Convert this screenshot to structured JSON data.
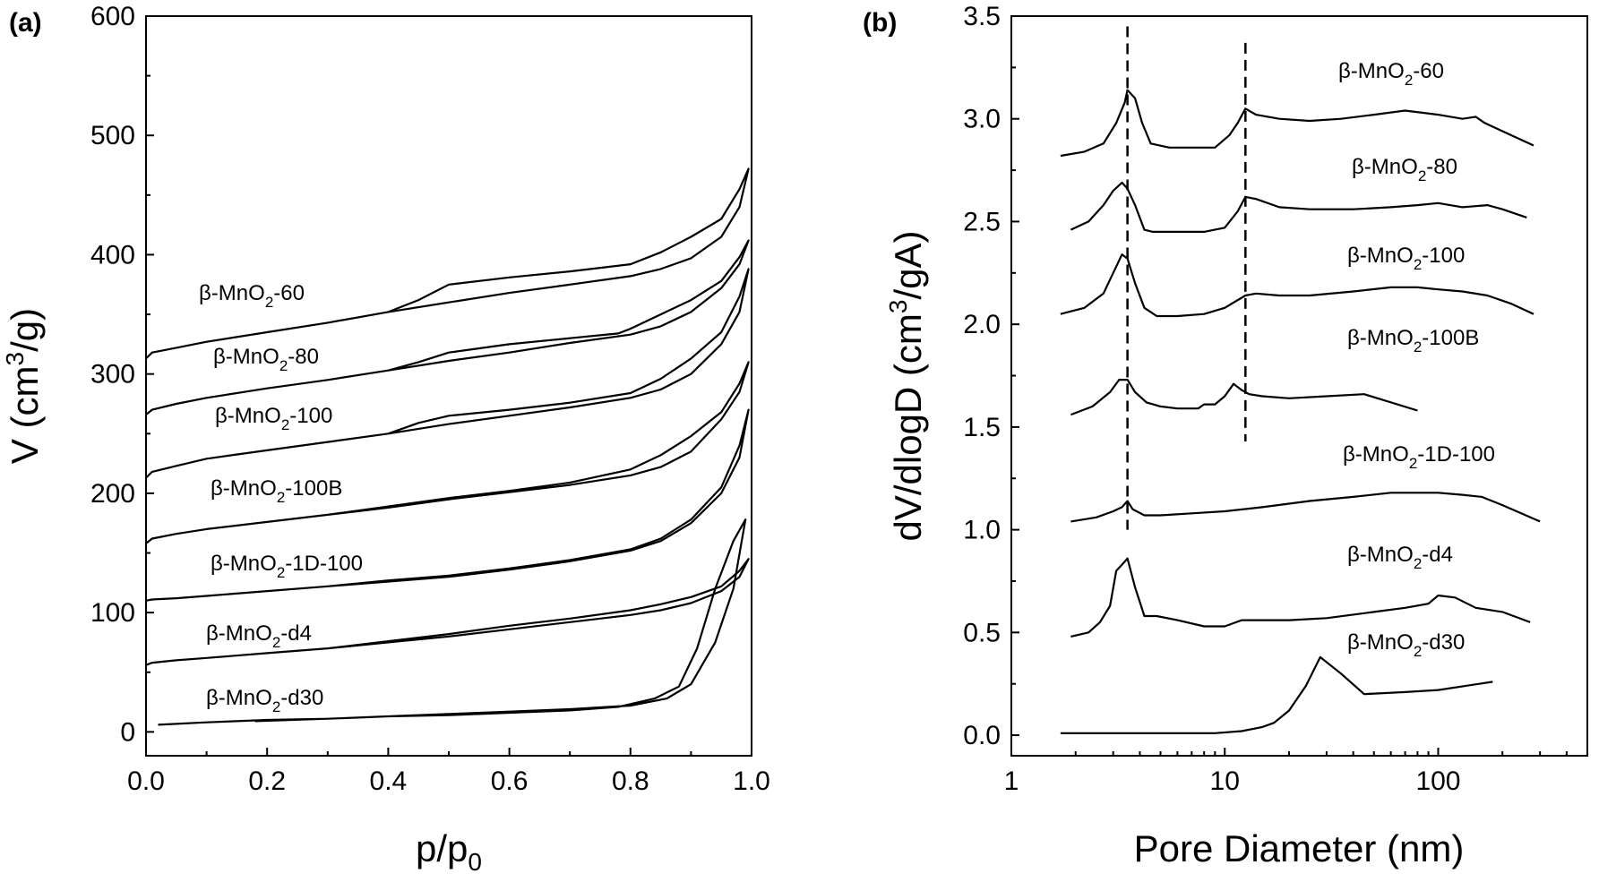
{
  "chart_data": [
    {
      "type": "line",
      "panel_label": "(a)",
      "xlabel_main": "p/p",
      "xlabel_sub": "0",
      "ylabel_pre": "V (cm",
      "ylabel_sup": "3",
      "ylabel_post": "/g)",
      "xlim": [
        0.0,
        1.0
      ],
      "ylim": [
        -20,
        600
      ],
      "xticks": [
        "0.0",
        "0.2",
        "0.4",
        "0.6",
        "0.8",
        "1.0"
      ],
      "yticks": [
        "0",
        "100",
        "200",
        "300",
        "400",
        "500",
        "600"
      ],
      "grid": false,
      "series": [
        {
          "name": "β-MnO₂-60",
          "label": {
            "pre": "β-MnO",
            "sub": "2",
            "post": "-60"
          },
          "x": [
            0.0,
            0.01,
            0.05,
            0.1,
            0.2,
            0.3,
            0.4,
            0.5,
            0.6,
            0.7,
            0.8,
            0.85,
            0.9,
            0.95,
            0.98,
            0.995,
            0.98,
            0.95,
            0.9,
            0.85,
            0.8,
            0.7,
            0.6,
            0.5,
            0.45,
            0.4,
            0.3,
            0.2,
            0.1,
            0.05,
            0.01
          ],
          "y": [
            313,
            318,
            322,
            327,
            335,
            343,
            352,
            360,
            368,
            375,
            382,
            388,
            397,
            415,
            440,
            472,
            455,
            430,
            415,
            402,
            392,
            386,
            381,
            375,
            362,
            352,
            343,
            335,
            327,
            322,
            318
          ]
        },
        {
          "name": "β-MnO₂-80",
          "label": {
            "pre": "β-MnO",
            "sub": "2",
            "post": "-80"
          },
          "x": [
            0.0,
            0.01,
            0.05,
            0.1,
            0.2,
            0.3,
            0.4,
            0.5,
            0.6,
            0.7,
            0.8,
            0.85,
            0.9,
            0.95,
            0.98,
            0.995,
            0.98,
            0.95,
            0.9,
            0.85,
            0.8,
            0.78,
            0.7,
            0.6,
            0.5,
            0.45,
            0.4,
            0.3,
            0.2,
            0.1,
            0.05,
            0.01
          ],
          "y": [
            266,
            270,
            275,
            280,
            288,
            295,
            303,
            311,
            318,
            326,
            333,
            340,
            352,
            372,
            392,
            412,
            398,
            378,
            362,
            350,
            338,
            334,
            330,
            325,
            318,
            310,
            303,
            295,
            288,
            280,
            275,
            270
          ]
        },
        {
          "name": "β-MnO₂-100",
          "label": {
            "pre": "β-MnO",
            "sub": "2",
            "post": "-100"
          },
          "x": [
            0.0,
            0.01,
            0.05,
            0.1,
            0.2,
            0.3,
            0.4,
            0.5,
            0.6,
            0.7,
            0.8,
            0.85,
            0.9,
            0.95,
            0.98,
            0.995,
            0.98,
            0.95,
            0.9,
            0.85,
            0.8,
            0.7,
            0.6,
            0.5,
            0.45,
            0.4,
            0.3,
            0.2,
            0.1,
            0.05,
            0.01
          ],
          "y": [
            213,
            218,
            223,
            229,
            236,
            243,
            250,
            258,
            265,
            272,
            280,
            287,
            300,
            325,
            352,
            388,
            365,
            335,
            313,
            296,
            284,
            276,
            270,
            265,
            259,
            250,
            243,
            236,
            229,
            223,
            218
          ]
        },
        {
          "name": "β-MnO₂-100B",
          "label": {
            "pre": "β-MnO",
            "sub": "2",
            "post": "-100B"
          },
          "x": [
            0.0,
            0.01,
            0.05,
            0.1,
            0.2,
            0.3,
            0.4,
            0.5,
            0.6,
            0.7,
            0.8,
            0.85,
            0.9,
            0.95,
            0.98,
            0.995,
            0.98,
            0.95,
            0.9,
            0.85,
            0.8,
            0.7,
            0.6,
            0.5,
            0.4,
            0.3,
            0.2,
            0.1,
            0.05,
            0.01
          ],
          "y": [
            158,
            162,
            166,
            170,
            176,
            182,
            188,
            195,
            201,
            207,
            215,
            222,
            235,
            262,
            285,
            310,
            292,
            268,
            248,
            232,
            220,
            209,
            202,
            196,
            189,
            182,
            176,
            170,
            166,
            162
          ]
        },
        {
          "name": "β-MnO₂-1D-100",
          "label": {
            "pre": "β-MnO",
            "sub": "2",
            "post": "-1D-100"
          },
          "x": [
            0.0,
            0.01,
            0.05,
            0.1,
            0.2,
            0.3,
            0.4,
            0.5,
            0.6,
            0.7,
            0.8,
            0.85,
            0.9,
            0.95,
            0.98,
            0.995,
            0.98,
            0.95,
            0.9,
            0.85,
            0.8,
            0.7,
            0.6,
            0.5,
            0.4,
            0.3,
            0.2,
            0.1,
            0.05,
            0.01
          ],
          "y": [
            110,
            111,
            112,
            114,
            118,
            122,
            126,
            130,
            136,
            143,
            152,
            160,
            175,
            200,
            230,
            270,
            240,
            205,
            178,
            162,
            153,
            144,
            137,
            131,
            127,
            122,
            118,
            114,
            112,
            111
          ]
        },
        {
          "name": "β-MnO₂-d4",
          "label": {
            "pre": "β-MnO",
            "sub": "2",
            "post": "-d4"
          },
          "x": [
            0.0,
            0.01,
            0.05,
            0.1,
            0.2,
            0.3,
            0.4,
            0.5,
            0.6,
            0.7,
            0.8,
            0.85,
            0.9,
            0.95,
            0.98,
            0.995,
            0.98,
            0.95,
            0.9,
            0.85,
            0.8,
            0.7,
            0.6,
            0.5,
            0.4,
            0.3,
            0.2,
            0.1,
            0.05,
            0.01
          ],
          "y": [
            56,
            58,
            60,
            62,
            66,
            70,
            75,
            80,
            86,
            92,
            98,
            102,
            108,
            118,
            130,
            145,
            135,
            122,
            113,
            107,
            102,
            95,
            89,
            82,
            76,
            70,
            66,
            62,
            60,
            58
          ]
        },
        {
          "name": "β-MnO₂-d30",
          "label": {
            "pre": "β-MnO",
            "sub": "2",
            "post": "-d30"
          },
          "x": [
            0.02,
            0.1,
            0.2,
            0.3,
            0.4,
            0.5,
            0.6,
            0.7,
            0.78,
            0.84,
            0.88,
            0.91,
            0.94,
            0.97,
            0.99,
            0.97,
            0.94,
            0.9,
            0.86,
            0.8,
            0.7,
            0.6,
            0.5,
            0.4,
            0.3,
            0.18
          ],
          "y": [
            6,
            8,
            10,
            11,
            13,
            14,
            16,
            18,
            21,
            28,
            38,
            70,
            120,
            160,
            178,
            120,
            75,
            40,
            28,
            22,
            19,
            17,
            15,
            13,
            11,
            9
          ]
        }
      ]
    },
    {
      "type": "line",
      "panel_label": "(b)",
      "xlabel": "Pore Diameter (nm)",
      "ylabel_pre": "dV/dlogD (cm",
      "ylabel_sup": "3",
      "ylabel_post": "/gA)",
      "xscale": "log",
      "xlim": [
        1,
        500
      ],
      "ylim": [
        -0.1,
        3.5
      ],
      "xticks": [
        "1",
        "10",
        "100"
      ],
      "yticks": [
        "0.0",
        "0.5",
        "1.0",
        "1.5",
        "2.0",
        "2.5",
        "3.0",
        "3.5"
      ],
      "grid": false,
      "reference_lines_x": [
        3.5,
        12.5
      ],
      "series": [
        {
          "name": "β-MnO₂-60",
          "label": {
            "pre": "β-MnO",
            "sub": "2",
            "post": "-60"
          },
          "x": [
            1.7,
            2.2,
            2.7,
            3.1,
            3.4,
            3.5,
            3.8,
            4.1,
            4.5,
            5.5,
            7,
            9,
            10.5,
            11.5,
            12.5,
            14,
            18,
            25,
            35,
            50,
            70,
            100,
            130,
            150,
            165,
            200,
            280
          ],
          "y": [
            2.82,
            2.84,
            2.88,
            2.98,
            3.08,
            3.14,
            3.1,
            2.98,
            2.88,
            2.86,
            2.86,
            2.86,
            2.92,
            2.98,
            3.05,
            3.02,
            3.0,
            2.99,
            3.0,
            3.02,
            3.04,
            3.02,
            3.0,
            3.01,
            2.98,
            2.94,
            2.87
          ]
        },
        {
          "name": "β-MnO₂-80",
          "label": {
            "pre": "β-MnO",
            "sub": "2",
            "post": "-80"
          },
          "x": [
            1.9,
            2.3,
            2.7,
            3.0,
            3.3,
            3.5,
            3.8,
            4.2,
            4.6,
            6,
            8,
            10,
            11.5,
            12.5,
            14,
            18,
            25,
            40,
            60,
            80,
            100,
            130,
            170,
            200,
            260
          ],
          "y": [
            2.46,
            2.5,
            2.58,
            2.65,
            2.69,
            2.66,
            2.58,
            2.46,
            2.45,
            2.45,
            2.45,
            2.47,
            2.55,
            2.62,
            2.61,
            2.57,
            2.56,
            2.56,
            2.57,
            2.58,
            2.59,
            2.57,
            2.58,
            2.56,
            2.52
          ]
        },
        {
          "name": "β-MnO₂-100",
          "label": {
            "pre": "β-MnO",
            "sub": "2",
            "post": "-100"
          },
          "x": [
            1.7,
            2.2,
            2.7,
            3.0,
            3.3,
            3.5,
            3.8,
            4.2,
            4.8,
            6,
            8,
            10,
            12.5,
            14,
            18,
            25,
            40,
            60,
            80,
            100,
            130,
            170,
            220,
            280
          ],
          "y": [
            2.05,
            2.08,
            2.15,
            2.25,
            2.34,
            2.32,
            2.2,
            2.08,
            2.04,
            2.04,
            2.05,
            2.08,
            2.14,
            2.15,
            2.14,
            2.14,
            2.16,
            2.18,
            2.18,
            2.17,
            2.16,
            2.14,
            2.1,
            2.05
          ]
        },
        {
          "name": "β-MnO₂-100B",
          "label": {
            "pre": "β-MnO",
            "sub": "2",
            "post": "-100B"
          },
          "x": [
            1.9,
            2.4,
            2.9,
            3.2,
            3.5,
            3.8,
            4.3,
            5,
            6,
            7.5,
            8,
            9,
            10,
            11,
            12,
            13,
            15,
            20,
            30,
            45,
            80
          ],
          "y": [
            1.56,
            1.6,
            1.67,
            1.73,
            1.73,
            1.67,
            1.62,
            1.6,
            1.59,
            1.59,
            1.61,
            1.61,
            1.65,
            1.71,
            1.68,
            1.66,
            1.65,
            1.64,
            1.65,
            1.66,
            1.58
          ]
        },
        {
          "name": "β-MnO₂-1D-100",
          "label": {
            "pre": "β-MnO",
            "sub": "2",
            "post": "-1D-100"
          },
          "x": [
            1.9,
            2.5,
            3.0,
            3.3,
            3.5,
            3.7,
            4.2,
            5,
            7,
            10,
            15,
            25,
            40,
            60,
            80,
            100,
            130,
            160,
            200,
            300
          ],
          "y": [
            1.04,
            1.06,
            1.09,
            1.11,
            1.14,
            1.1,
            1.07,
            1.07,
            1.08,
            1.09,
            1.11,
            1.14,
            1.16,
            1.18,
            1.18,
            1.18,
            1.17,
            1.16,
            1.12,
            1.04
          ]
        },
        {
          "name": "β-MnO₂-d4",
          "label": {
            "pre": "β-MnO",
            "sub": "2",
            "post": "-d4"
          },
          "x": [
            1.9,
            2.3,
            2.6,
            2.9,
            3.1,
            3.3,
            3.5,
            3.8,
            4.2,
            4.8,
            6,
            8,
            10,
            12,
            15,
            20,
            30,
            50,
            70,
            90,
            100,
            120,
            150,
            200,
            270
          ],
          "y": [
            0.48,
            0.5,
            0.55,
            0.63,
            0.8,
            0.83,
            0.86,
            0.72,
            0.58,
            0.58,
            0.56,
            0.53,
            0.53,
            0.56,
            0.56,
            0.56,
            0.57,
            0.6,
            0.62,
            0.64,
            0.68,
            0.67,
            0.62,
            0.6,
            0.55
          ]
        },
        {
          "name": "β-MnO₂-d30",
          "label": {
            "pre": "β-MnO",
            "sub": "2",
            "post": "-d30"
          },
          "x": [
            1.7,
            2.5,
            4,
            6,
            9,
            12,
            15,
            17,
            20,
            24,
            28,
            35,
            45,
            70,
            100,
            180
          ],
          "y": [
            0.01,
            0.01,
            0.01,
            0.01,
            0.01,
            0.02,
            0.04,
            0.06,
            0.12,
            0.24,
            0.38,
            0.3,
            0.2,
            0.21,
            0.22,
            0.26
          ]
        }
      ]
    }
  ]
}
